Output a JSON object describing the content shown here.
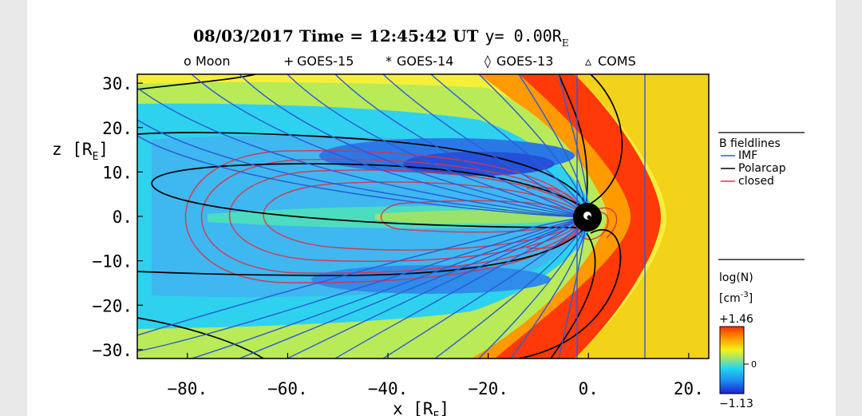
{
  "title": {
    "date_time": "08/03/2017 Time = 12:45:42 UT",
    "y_prefix": "y= 0.00R",
    "y_sub": "E"
  },
  "satellite_legend": [
    {
      "marker": "o",
      "label": "Moon"
    },
    {
      "marker": "+",
      "label": "GOES-15"
    },
    {
      "marker": "*",
      "label": "GOES-14"
    },
    {
      "marker": "◊",
      "label": "GOES-13"
    },
    {
      "marker": "▵",
      "label": "COMS"
    }
  ],
  "fieldline_legend": {
    "title": "B fieldlines",
    "items": [
      {
        "label": "IMF",
        "color": "#2a5bd7"
      },
      {
        "label": "Polarcap",
        "color": "#000000"
      },
      {
        "label": "closed",
        "color": "#e0304a"
      }
    ]
  },
  "colorbar": {
    "title": "log(N)",
    "unit_prefix": "[cm",
    "unit_sup": "-3",
    "unit_suffix": "]",
    "max_label": "+1.46",
    "mid_label": "0",
    "min_label": "−1.13",
    "max": 1.46,
    "min": -1.13,
    "colors": [
      "#1a22d0",
      "#1f8ff0",
      "#22d8f0",
      "#8ee08a",
      "#f3f31a",
      "#ff9b00",
      "#ff3000"
    ]
  },
  "chart_data": {
    "type": "heatmap",
    "title": "08/03/2017 Time = 12:45:42 UT y= 0.00R_E",
    "x_label": "x [R",
    "x_label_sub": "E",
    "y_label": "z [R",
    "y_label_sub": "E",
    "xlim": [
      -90,
      24
    ],
    "ylim": [
      -32,
      32
    ],
    "x_ticks": [
      -80,
      -60,
      -40,
      -20,
      0,
      20
    ],
    "x_tick_labels": [
      "−80.",
      "−60.",
      "−40.",
      "−20.",
      "0.",
      "20."
    ],
    "y_ticks": [
      30,
      20,
      10,
      0,
      -10,
      -20,
      -30
    ],
    "y_tick_labels": [
      "30.",
      "20.",
      "10.",
      "0.",
      "−10.",
      "−20.",
      "−30."
    ],
    "earth_position": [
      0,
      0
    ],
    "vertical_field_lines_x": [
      -1.5,
      11.5
    ],
    "quantity": "log(N)"
  }
}
